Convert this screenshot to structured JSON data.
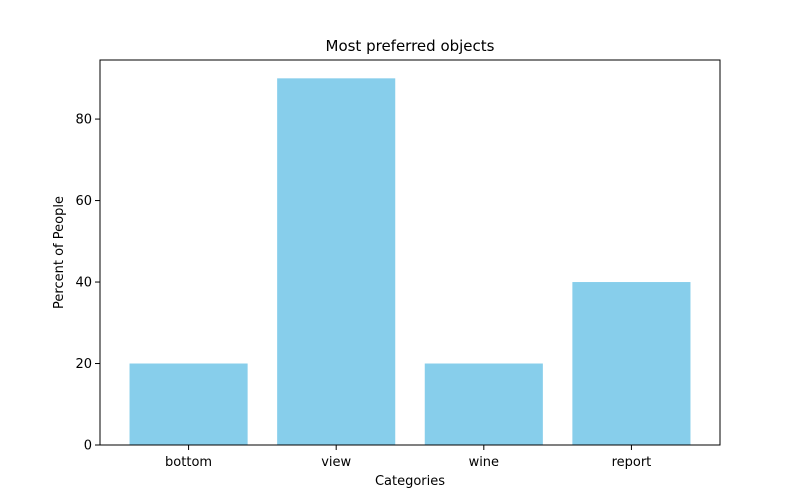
{
  "chart_data": {
    "type": "bar",
    "title": "Most preferred objects",
    "xlabel": "Categories",
    "ylabel": "Percent of People",
    "categories": [
      "bottom",
      "view",
      "wine",
      "report"
    ],
    "values": [
      20,
      90,
      20,
      40
    ],
    "ylim": [
      0,
      94.5
    ],
    "yticks": [
      0,
      20,
      40,
      60,
      80
    ],
    "bar_color": "#87ceeb",
    "grid": false,
    "legend": "none"
  }
}
